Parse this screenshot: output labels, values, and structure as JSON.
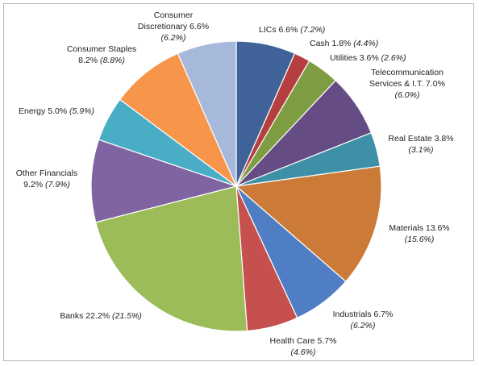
{
  "chart_data": {
    "type": "pie",
    "start": "top, clockwise",
    "legend": "none",
    "slices": [
      {
        "name": "LICs",
        "value": 6.6,
        "value_text": "6.6%",
        "prev_text": "(7.2%)",
        "color": "#3F6398"
      },
      {
        "name": "Cash",
        "value": 1.8,
        "value_text": "1.8%",
        "prev_text": "(4.4%)",
        "color": "#B43F3E"
      },
      {
        "name": "Utilities",
        "value": 3.6,
        "value_text": "3.6%",
        "prev_text": "(2.6%)",
        "color": "#7E9C41"
      },
      {
        "name": "Telecommunication Services & I.T.",
        "value": 7.0,
        "value_text": "7.0%",
        "prev_text": "(6.0%)",
        "color": "#664C84"
      },
      {
        "name": "Real Estate",
        "value": 3.8,
        "value_text": "3.8%",
        "prev_text": "(3.1%)",
        "color": "#3E90A6"
      },
      {
        "name": "Materials",
        "value": 13.6,
        "value_text": "13.6%",
        "prev_text": "(15.6%)",
        "color": "#CB7A37"
      },
      {
        "name": "Industrials",
        "value": 6.7,
        "value_text": "6.7%",
        "prev_text": "(6.2%)",
        "color": "#4F7EC4"
      },
      {
        "name": "Health Care",
        "value": 5.7,
        "value_text": "5.7%",
        "prev_text": "(4.6%)",
        "color": "#C5504E"
      },
      {
        "name": "Banks",
        "value": 22.2,
        "value_text": "22.2%",
        "prev_text": "(21.5%)",
        "color": "#9BBC59"
      },
      {
        "name": "Other Financials",
        "value": 9.2,
        "value_text": "9.2%",
        "prev_text": "(7.9%)",
        "color": "#8064A2"
      },
      {
        "name": "Energy",
        "value": 5.0,
        "value_text": "5.0%",
        "prev_text": "(5.9%)",
        "color": "#4AADC6"
      },
      {
        "name": "Consumer Staples",
        "value": 8.2,
        "value_text": "8.2%",
        "prev_text": "(8.8%)",
        "color": "#F7964A"
      },
      {
        "name": "Consumer Discretionary",
        "value": 6.6,
        "value_text": "6.6%",
        "prev_text": "(6.2%)",
        "color": "#A7B9DA"
      }
    ]
  }
}
